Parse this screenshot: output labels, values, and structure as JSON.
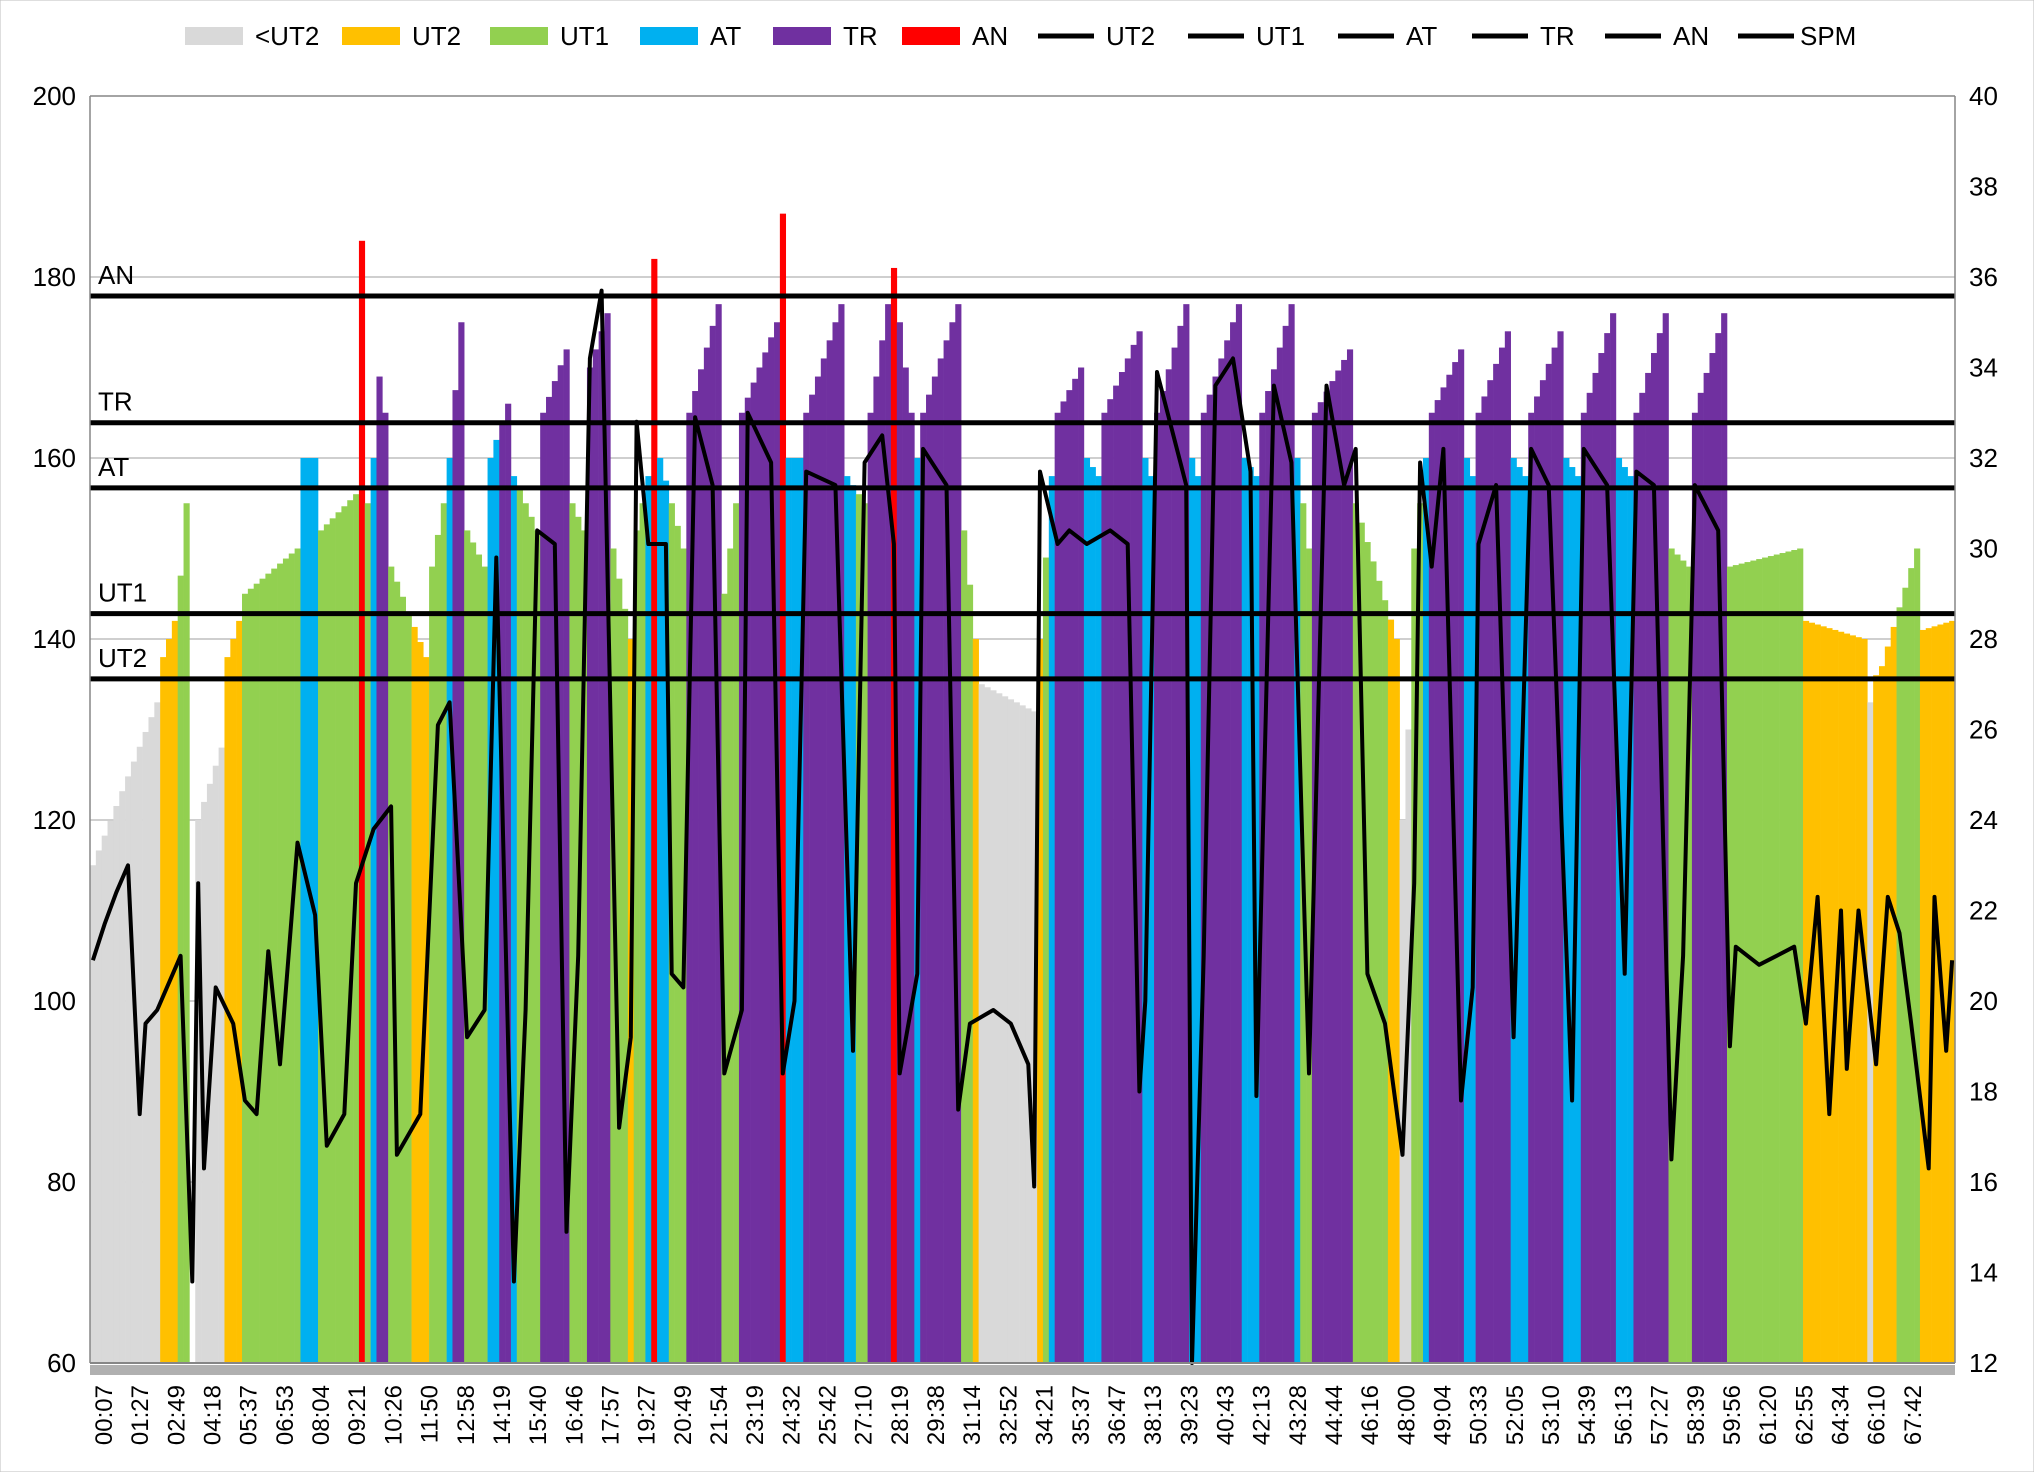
{
  "chart_data": {
    "type": "bar",
    "title": "",
    "xlabel": "",
    "ylabel": "",
    "y_left": {
      "min": 60,
      "max": 200,
      "step": 20,
      "ticks": [
        "60",
        "80",
        "100",
        "120",
        "140",
        "160",
        "180",
        "200"
      ]
    },
    "y_right": {
      "min": 12,
      "max": 40,
      "step": 2,
      "ticks": [
        "12",
        "14",
        "16",
        "18",
        "20",
        "22",
        "24",
        "26",
        "28",
        "30",
        "32",
        "34",
        "36",
        "38",
        "40"
      ]
    },
    "grid": true,
    "legend_position": "top",
    "legend": [
      {
        "label": "<UT2",
        "kind": "bar",
        "color": "#d9d9d9"
      },
      {
        "label": "UT2",
        "kind": "bar",
        "color": "#ffc000"
      },
      {
        "label": "UT1",
        "kind": "bar",
        "color": "#92d050"
      },
      {
        "label": "AT",
        "kind": "bar",
        "color": "#00b0f0"
      },
      {
        "label": "TR",
        "kind": "bar",
        "color": "#7030a0"
      },
      {
        "label": "AN",
        "kind": "bar",
        "color": "#ff0000"
      },
      {
        "label": "UT2",
        "kind": "line",
        "color": "#000000"
      },
      {
        "label": "UT1",
        "kind": "line",
        "color": "#000000"
      },
      {
        "label": "AT",
        "kind": "line",
        "color": "#000000"
      },
      {
        "label": "TR",
        "kind": "line",
        "color": "#000000"
      },
      {
        "label": "AN",
        "kind": "line",
        "color": "#000000"
      },
      {
        "label": "SPM",
        "kind": "line",
        "color": "#000000"
      }
    ],
    "zones": [
      {
        "name": "<UT2",
        "below": 135.6,
        "color": "#d9d9d9"
      },
      {
        "name": "UT2",
        "below": 142.8,
        "color": "#ffc000"
      },
      {
        "name": "UT1",
        "below": 156.7,
        "color": "#92d050"
      },
      {
        "name": "AT",
        "below": 163.9,
        "color": "#00b0f0"
      },
      {
        "name": "TR",
        "below": 177.9,
        "color": "#7030a0"
      },
      {
        "name": "AN",
        "below": 999,
        "color": "#ff0000"
      }
    ],
    "thresholds": [
      {
        "label": "AN",
        "value": 177.9
      },
      {
        "label": "TR",
        "value": 163.9
      },
      {
        "label": "AT",
        "value": 156.7
      },
      {
        "label": "UT1",
        "value": 142.8
      },
      {
        "label": "UT2",
        "value": 135.6
      }
    ],
    "x_tick_labels": [
      "00:07",
      "01:27",
      "02:49",
      "04:18",
      "05:37",
      "06:53",
      "08:04",
      "09:21",
      "10:26",
      "11:50",
      "12:58",
      "14:19",
      "15:40",
      "16:46",
      "17:57",
      "19:27",
      "20:49",
      "21:54",
      "23:19",
      "24:32",
      "25:42",
      "27:10",
      "28:19",
      "29:38",
      "31:14",
      "32:52",
      "34:21",
      "35:37",
      "36:47",
      "38:13",
      "39:23",
      "40:43",
      "42:13",
      "43:28",
      "44:44",
      "46:16",
      "48:00",
      "49:04",
      "50:33",
      "52:05",
      "53:10",
      "54:39",
      "56:13",
      "57:27",
      "58:39",
      "59:56",
      "61:20",
      "62:55",
      "64:34",
      "66:10",
      "67:42"
    ],
    "heart_rate_segments_note": "[count, hr_start, hr_end] ramps of consecutive samples",
    "heart_rate_segments": [
      [
        12,
        115,
        133
      ],
      [
        3,
        138,
        142
      ],
      [
        2,
        147,
        155
      ],
      [
        1,
        60,
        60
      ],
      [
        5,
        120,
        128
      ],
      [
        3,
        138,
        142
      ],
      [
        10,
        145,
        150
      ],
      [
        3,
        160,
        160
      ],
      [
        7,
        152,
        156
      ],
      [
        1,
        184,
        184
      ],
      [
        2,
        155,
        160
      ],
      [
        2,
        169,
        165
      ],
      [
        7,
        148,
        138
      ],
      [
        3,
        148,
        155
      ],
      [
        3,
        160,
        175
      ],
      [
        4,
        152,
        148
      ],
      [
        4,
        160,
        166
      ],
      [
        5,
        158,
        152
      ],
      [
        5,
        165,
        172
      ],
      [
        3,
        155,
        152
      ],
      [
        4,
        170,
        176
      ],
      [
        4,
        150,
        140
      ],
      [
        3,
        152,
        158
      ],
      [
        1,
        182,
        182
      ],
      [
        5,
        160,
        150
      ],
      [
        6,
        165,
        177
      ],
      [
        3,
        145,
        155
      ],
      [
        7,
        165,
        175
      ],
      [
        1,
        187,
        187
      ],
      [
        3,
        160,
        160
      ],
      [
        7,
        165,
        177
      ],
      [
        4,
        158,
        155
      ],
      [
        4,
        165,
        177
      ],
      [
        1,
        181,
        181
      ],
      [
        4,
        175,
        160
      ],
      [
        7,
        165,
        177
      ],
      [
        3,
        152,
        140
      ],
      [
        10,
        135,
        132
      ],
      [
        3,
        140,
        158
      ],
      [
        5,
        165,
        170
      ],
      [
        3,
        160,
        158
      ],
      [
        7,
        165,
        174
      ],
      [
        2,
        160,
        158
      ],
      [
        6,
        165,
        177
      ],
      [
        2,
        160,
        158
      ],
      [
        7,
        165,
        177
      ],
      [
        3,
        160,
        158
      ],
      [
        6,
        165,
        177
      ],
      [
        3,
        160,
        150
      ],
      [
        7,
        165,
        172
      ],
      [
        8,
        155,
        140
      ],
      [
        2,
        120,
        130
      ],
      [
        3,
        150,
        160
      ],
      [
        6,
        165,
        172
      ],
      [
        2,
        160,
        158
      ],
      [
        6,
        165,
        174
      ],
      [
        3,
        160,
        158
      ],
      [
        6,
        165,
        174
      ],
      [
        3,
        160,
        158
      ],
      [
        6,
        165,
        176
      ],
      [
        3,
        160,
        158
      ],
      [
        6,
        165,
        176
      ],
      [
        4,
        150,
        148
      ],
      [
        6,
        165,
        176
      ],
      [
        13,
        148,
        150
      ],
      [
        11,
        142,
        140
      ],
      [
        2,
        133,
        136
      ],
      [
        7,
        137,
        150
      ],
      [
        6,
        141,
        142
      ]
    ],
    "spm_points_note": "[sample_index, spm]",
    "spm_points": [
      [
        0,
        20.9
      ],
      [
        2,
        21.7
      ],
      [
        4,
        22.4
      ],
      [
        6,
        23
      ],
      [
        8,
        17.5
      ],
      [
        9,
        19.5
      ],
      [
        11,
        19.8
      ],
      [
        15,
        21
      ],
      [
        17,
        13.8
      ],
      [
        18,
        22.6
      ],
      [
        19,
        16.3
      ],
      [
        21,
        20.3
      ],
      [
        24,
        19.5
      ],
      [
        26,
        17.8
      ],
      [
        28,
        17.5
      ],
      [
        30,
        21.1
      ],
      [
        32,
        18.6
      ],
      [
        35,
        23.5
      ],
      [
        38,
        21.9
      ],
      [
        40,
        16.8
      ],
      [
        43,
        17.5
      ],
      [
        45,
        22.6
      ],
      [
        48,
        23.8
      ],
      [
        51,
        24.3
      ],
      [
        52,
        16.6
      ],
      [
        56,
        17.5
      ],
      [
        59,
        26.1
      ],
      [
        61,
        26.6
      ],
      [
        64,
        19.2
      ],
      [
        67,
        19.8
      ],
      [
        69,
        29.8
      ],
      [
        72,
        13.8
      ],
      [
        74,
        19.8
      ],
      [
        76,
        30.4
      ],
      [
        79,
        30.1
      ],
      [
        81,
        14.9
      ],
      [
        83,
        21
      ],
      [
        85,
        34.2
      ],
      [
        87,
        35.7
      ],
      [
        90,
        17.2
      ],
      [
        92,
        19.2
      ],
      [
        93,
        32.8
      ],
      [
        95,
        30.1
      ],
      [
        98,
        30.1
      ],
      [
        99,
        20.6
      ],
      [
        101,
        20.3
      ],
      [
        103,
        32.9
      ],
      [
        106,
        31.4
      ],
      [
        108,
        18.4
      ],
      [
        111,
        19.8
      ],
      [
        112,
        33
      ],
      [
        116,
        31.9
      ],
      [
        118,
        18.4
      ],
      [
        120,
        20
      ],
      [
        122,
        31.7
      ],
      [
        127,
        31.4
      ],
      [
        130,
        18.9
      ],
      [
        132,
        31.9
      ],
      [
        135,
        32.5
      ],
      [
        137,
        30.1
      ],
      [
        138,
        18.4
      ],
      [
        141,
        20.6
      ],
      [
        142,
        32.2
      ],
      [
        146,
        31.4
      ],
      [
        148,
        17.6
      ],
      [
        150,
        19.5
      ],
      [
        154,
        19.8
      ],
      [
        157,
        19.5
      ],
      [
        160,
        18.6
      ],
      [
        161,
        15.9
      ],
      [
        162,
        31.7
      ],
      [
        165,
        30.1
      ],
      [
        167,
        30.4
      ],
      [
        170,
        30.1
      ],
      [
        174,
        30.4
      ],
      [
        177,
        30.1
      ],
      [
        179,
        18
      ],
      [
        180,
        20
      ],
      [
        182,
        33.9
      ],
      [
        186,
        31.9
      ],
      [
        187,
        31.4
      ],
      [
        188,
        12
      ],
      [
        190,
        21
      ],
      [
        192,
        33.6
      ],
      [
        195,
        34.2
      ],
      [
        198,
        31.7
      ],
      [
        199,
        17.9
      ],
      [
        202,
        33.6
      ],
      [
        205,
        31.9
      ],
      [
        208,
        18.4
      ],
      [
        211,
        33.6
      ],
      [
        214,
        31.4
      ],
      [
        216,
        32.2
      ],
      [
        218,
        20.6
      ],
      [
        221,
        19.5
      ],
      [
        224,
        16.6
      ],
      [
        226,
        22.6
      ],
      [
        227,
        31.9
      ],
      [
        229,
        29.6
      ],
      [
        231,
        32.2
      ],
      [
        234,
        17.8
      ],
      [
        236,
        20.3
      ],
      [
        237,
        30.1
      ],
      [
        240,
        31.4
      ],
      [
        243,
        19.2
      ],
      [
        246,
        32.2
      ],
      [
        249,
        31.4
      ],
      [
        253,
        17.8
      ],
      [
        255,
        32.2
      ],
      [
        259,
        31.4
      ],
      [
        262,
        20.6
      ],
      [
        264,
        31.7
      ],
      [
        267,
        31.4
      ],
      [
        270,
        16.5
      ],
      [
        272,
        21
      ],
      [
        274,
        31.4
      ],
      [
        278,
        30.4
      ],
      [
        280,
        19
      ],
      [
        281,
        21.2
      ],
      [
        285,
        20.8
      ],
      [
        288,
        21
      ],
      [
        291,
        21.2
      ],
      [
        293,
        19.5
      ],
      [
        295,
        22.3
      ],
      [
        297,
        17.5
      ],
      [
        299,
        22
      ],
      [
        300,
        18.5
      ],
      [
        302,
        22
      ],
      [
        305,
        18.6
      ],
      [
        307,
        22.3
      ],
      [
        309,
        21.5
      ],
      [
        311,
        19.5
      ],
      [
        314,
        16.3
      ],
      [
        315,
        22.3
      ],
      [
        317,
        18.9
      ],
      [
        318,
        20.9
      ]
    ]
  }
}
